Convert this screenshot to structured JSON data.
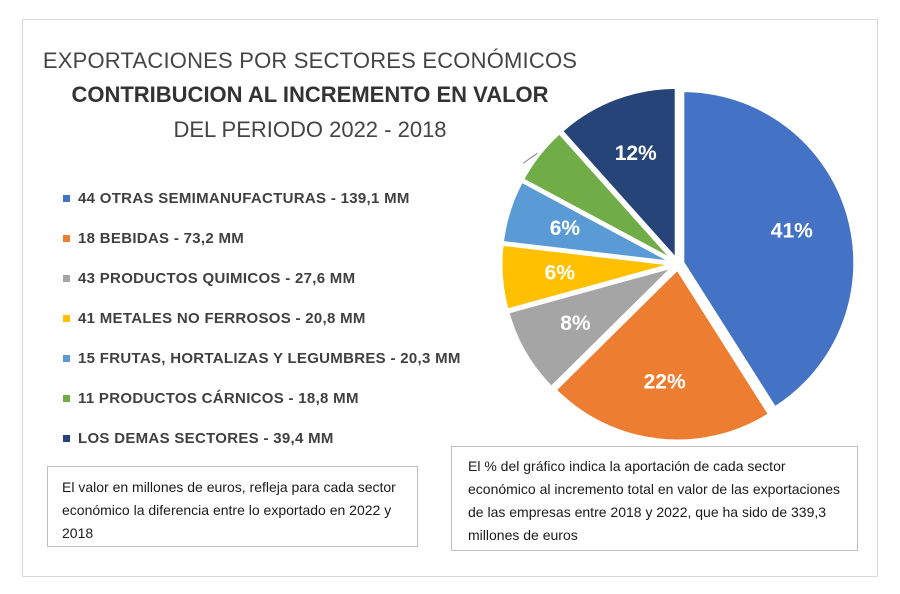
{
  "title": {
    "line1": "EXPORTACIONES POR SECTORES ECONÓMICOS",
    "line2": "CONTRIBUCION AL INCREMENTO EN VALOR",
    "line3": "DEL PERIODO 2022 - 2018"
  },
  "chart_data": {
    "type": "pie",
    "title": "EXPORTACIONES POR SECTORES ECONÓMICOS — CONTRIBUCION AL INCREMENTO EN VALOR — DEL PERIODO 2022 - 2018",
    "total": 339.3,
    "unit": "millones de euros",
    "legend_position": "left",
    "slices": [
      {
        "legend": "44 OTRAS SEMIMANUFACTURAS - 139,1 MM",
        "value": 139.1,
        "label": "41%",
        "color": "#4472C4"
      },
      {
        "legend": "18 BEBIDAS - 73,2 MM",
        "value": 73.2,
        "label": "22%",
        "color": "#ED7D31"
      },
      {
        "legend": "43 PRODUCTOS QUIMICOS - 27,6 MM",
        "value": 27.6,
        "label": "8%",
        "color": "#A5A5A5"
      },
      {
        "legend": "41 METALES NO FERROSOS - 20,8 MM",
        "value": 20.8,
        "label": "6%",
        "color": "#FFC000"
      },
      {
        "legend": "15 FRUTAS, HORTALIZAS Y LEGUMBRES - 20,3 MM",
        "value": 20.3,
        "label": "6%",
        "color": "#5B9BD5"
      },
      {
        "legend": "11 PRODUCTOS CÁRNICOS - 18,8 MM",
        "value": 18.8,
        "label": "",
        "color": "#70AD47"
      },
      {
        "legend": "LOS DEMAS SECTORES - 39,4 MM",
        "value": 39.4,
        "label": "12%",
        "color": "#264478"
      }
    ]
  },
  "notes": {
    "left": "El valor en millones de euros, refleja para cada sector económico la diferencia entre lo exportado en 2022 y 2018",
    "right": "El % del gráfico indica la aportación de cada sector económico al incremento total en valor de las exportaciones de las empresas entre 2018 y 2022, que ha sido de 339,3 millones de euros"
  }
}
